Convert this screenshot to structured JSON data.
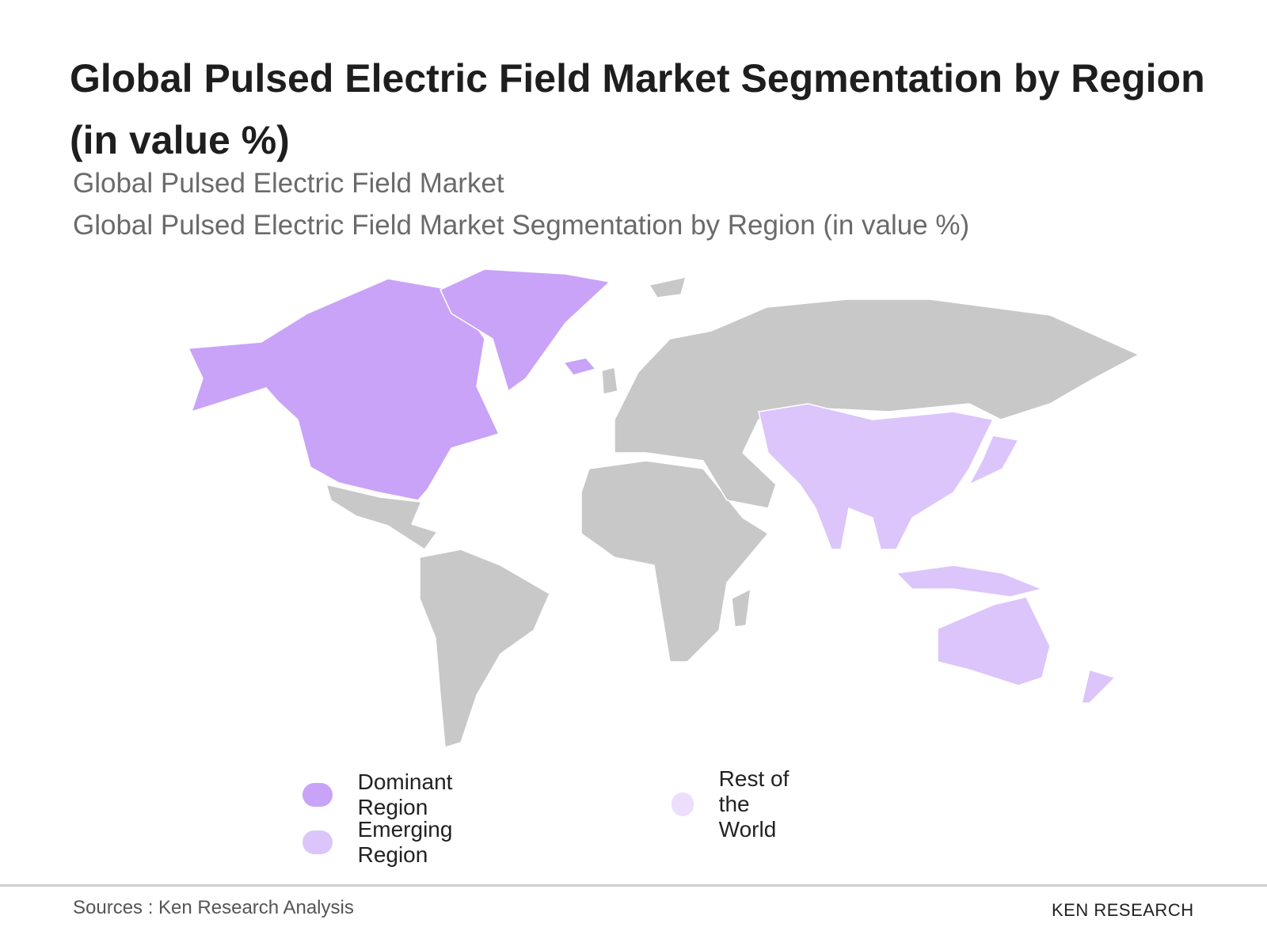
{
  "header": {
    "title": "Global Pulsed Electric Field Market Segmentation by Region (in value %)",
    "subtitles": [
      "Global Pulsed Electric Field Market",
      "Global Pulsed Electric Field Market Segmentation by Region (in value %)"
    ]
  },
  "legend": [
    {
      "label": "Dominant Region",
      "color": "#c9a3f7"
    },
    {
      "label": "Emerging Region",
      "color": "#dcc5fb"
    },
    {
      "label": "Rest of the World",
      "color": "#ecdefc"
    }
  ],
  "footer": {
    "source": "Sources : Ken Research Analysis",
    "logo": "KEN RESEARCH"
  }
}
